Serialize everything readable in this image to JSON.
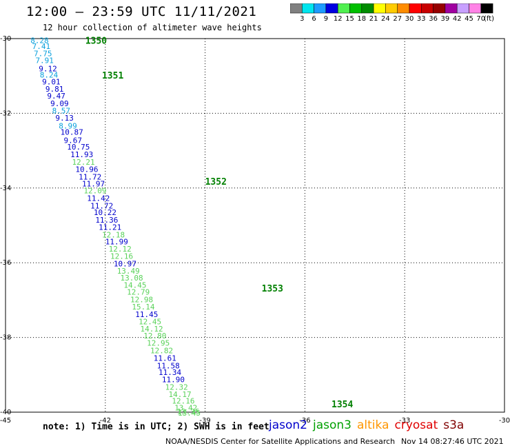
{
  "header": {
    "title": "12:00 – 23:59 UTC 11/11/2021",
    "subtitle": "12 hour collection of altimeter wave heights"
  },
  "legend": {
    "unit": "(ft)",
    "bins": [
      {
        "label": "3",
        "color": "#808080"
      },
      {
        "label": "6",
        "color": "#00e5ee"
      },
      {
        "label": "9",
        "color": "#1e9bff"
      },
      {
        "label": "12",
        "color": "#0000e0"
      },
      {
        "label": "15",
        "color": "#50f050"
      },
      {
        "label": "18",
        "color": "#00c000"
      },
      {
        "label": "21",
        "color": "#008c00"
      },
      {
        "label": "24",
        "color": "#ffff00"
      },
      {
        "label": "27",
        "color": "#ffcc00"
      },
      {
        "label": "30",
        "color": "#ff8c00"
      },
      {
        "label": "33",
        "color": "#ff0000"
      },
      {
        "label": "36",
        "color": "#c80000"
      },
      {
        "label": "39",
        "color": "#960000"
      },
      {
        "label": "42",
        "color": "#a000a0"
      },
      {
        "label": "45",
        "color": "#c8a0ff"
      },
      {
        "label": "70",
        "color": "#ff82e6"
      },
      {
        "label": "",
        "color": "#000000"
      }
    ]
  },
  "map": {
    "x_range": [
      -45,
      -30
    ],
    "y_range": [
      -40,
      -30
    ],
    "x_ticks": [
      {
        "label": "-45",
        "value": -45
      },
      {
        "label": "-42",
        "value": -42
      },
      {
        "label": "-39",
        "value": -39
      },
      {
        "label": "-36",
        "value": -36
      },
      {
        "label": "-33",
        "value": -33
      },
      {
        "label": "-30",
        "value": -30
      }
    ],
    "y_ticks": [
      {
        "label": "-30",
        "value": -30
      },
      {
        "label": "-32",
        "value": -32
      },
      {
        "label": "-34",
        "value": -34
      },
      {
        "label": "-36",
        "value": -36
      },
      {
        "label": "-38",
        "value": -38
      },
      {
        "label": "-40",
        "value": -40
      }
    ],
    "passes": [
      {
        "label": "1350",
        "lon": -42.6,
        "lat": -30.05,
        "color": "#008000"
      },
      {
        "label": "1351",
        "lon": -42.1,
        "lat": -30.98,
        "color": "#008000"
      },
      {
        "label": "1352",
        "lon": -39.0,
        "lat": -33.82,
        "color": "#008000"
      },
      {
        "label": "1353",
        "lon": -37.3,
        "lat": -36.68,
        "color": "#008000"
      },
      {
        "label": "1354",
        "lon": -35.2,
        "lat": -39.78,
        "color": "#008000"
      }
    ],
    "colors": {
      "cyan": "#0aa0dc",
      "blue": "#0000cc",
      "green": "#5ad25a"
    },
    "observations": [
      {
        "text": "8.28",
        "lon": -44.25,
        "lat": -30.05,
        "c": "cyan"
      },
      {
        "text": "7.41",
        "lon": -44.2,
        "lat": -30.2,
        "c": "cyan"
      },
      {
        "text": "7.75",
        "lon": -44.15,
        "lat": -30.4,
        "c": "cyan"
      },
      {
        "text": "7.91",
        "lon": -44.1,
        "lat": -30.58,
        "c": "cyan"
      },
      {
        "text": "9.12",
        "lon": -44.0,
        "lat": -30.8,
        "c": "blue"
      },
      {
        "text": "8.24",
        "lon": -43.97,
        "lat": -30.97,
        "c": "cyan"
      },
      {
        "text": "9.01",
        "lon": -43.9,
        "lat": -31.15,
        "c": "blue"
      },
      {
        "text": "9.81",
        "lon": -43.8,
        "lat": -31.35,
        "c": "blue"
      },
      {
        "text": "9.47",
        "lon": -43.75,
        "lat": -31.53,
        "c": "blue"
      },
      {
        "text": "9.09",
        "lon": -43.65,
        "lat": -31.73,
        "c": "blue"
      },
      {
        "text": "8.57",
        "lon": -43.6,
        "lat": -31.93,
        "c": "cyan"
      },
      {
        "text": "9.13",
        "lon": -43.5,
        "lat": -32.12,
        "c": "blue"
      },
      {
        "text": "8.99",
        "lon": -43.4,
        "lat": -32.33,
        "c": "cyan"
      },
      {
        "text": "10.87",
        "lon": -43.35,
        "lat": -32.5,
        "c": "blue"
      },
      {
        "text": "9.67",
        "lon": -43.25,
        "lat": -32.72,
        "c": "blue"
      },
      {
        "text": "10.75",
        "lon": -43.15,
        "lat": -32.9,
        "c": "blue"
      },
      {
        "text": "11.93",
        "lon": -43.05,
        "lat": -33.1,
        "c": "blue"
      },
      {
        "text": "12.21",
        "lon": -43.0,
        "lat": -33.3,
        "c": "green"
      },
      {
        "text": "10.96",
        "lon": -42.9,
        "lat": -33.5,
        "c": "blue"
      },
      {
        "text": "11.72",
        "lon": -42.8,
        "lat": -33.7,
        "c": "blue"
      },
      {
        "text": "11.97",
        "lon": -42.7,
        "lat": -33.88,
        "c": "blue"
      },
      {
        "text": "12.09",
        "lon": -42.65,
        "lat": -34.07,
        "c": "green"
      },
      {
        "text": "11.42",
        "lon": -42.55,
        "lat": -34.27,
        "c": "blue"
      },
      {
        "text": "11.72",
        "lon": -42.45,
        "lat": -34.47,
        "c": "blue"
      },
      {
        "text": "10.22",
        "lon": -42.35,
        "lat": -34.65,
        "c": "blue"
      },
      {
        "text": "11.36",
        "lon": -42.3,
        "lat": -34.85,
        "c": "blue"
      },
      {
        "text": "11.21",
        "lon": -42.2,
        "lat": -35.05,
        "c": "blue"
      },
      {
        "text": "12.18",
        "lon": -42.1,
        "lat": -35.25,
        "c": "green"
      },
      {
        "text": "11.99",
        "lon": -42.0,
        "lat": -35.43,
        "c": "blue"
      },
      {
        "text": "12.12",
        "lon": -41.9,
        "lat": -35.63,
        "c": "green"
      },
      {
        "text": "12.16",
        "lon": -41.85,
        "lat": -35.82,
        "c": "green"
      },
      {
        "text": "10.97",
        "lon": -41.75,
        "lat": -36.02,
        "c": "blue"
      },
      {
        "text": "13.49",
        "lon": -41.65,
        "lat": -36.22,
        "c": "green"
      },
      {
        "text": "13.08",
        "lon": -41.55,
        "lat": -36.4,
        "c": "green"
      },
      {
        "text": "14.45",
        "lon": -41.45,
        "lat": -36.6,
        "c": "green"
      },
      {
        "text": "12.79",
        "lon": -41.35,
        "lat": -36.78,
        "c": "green"
      },
      {
        "text": "12.98",
        "lon": -41.25,
        "lat": -36.98,
        "c": "green"
      },
      {
        "text": "15.14",
        "lon": -41.2,
        "lat": -37.18,
        "c": "green"
      },
      {
        "text": "11.45",
        "lon": -41.1,
        "lat": -37.38,
        "c": "blue"
      },
      {
        "text": "12.45",
        "lon": -41.0,
        "lat": -37.57,
        "c": "green"
      },
      {
        "text": "14.12",
        "lon": -40.95,
        "lat": -37.77,
        "c": "green"
      },
      {
        "text": "12.80",
        "lon": -40.85,
        "lat": -37.95,
        "c": "green"
      },
      {
        "text": "12.95",
        "lon": -40.75,
        "lat": -38.15,
        "c": "green"
      },
      {
        "text": "12.82",
        "lon": -40.65,
        "lat": -38.35,
        "c": "green"
      },
      {
        "text": "11.61",
        "lon": -40.55,
        "lat": -38.55,
        "c": "blue"
      },
      {
        "text": "11.58",
        "lon": -40.45,
        "lat": -38.75,
        "c": "blue"
      },
      {
        "text": "11.34",
        "lon": -40.4,
        "lat": -38.93,
        "c": "blue"
      },
      {
        "text": "11.90",
        "lon": -40.3,
        "lat": -39.12,
        "c": "blue"
      },
      {
        "text": "12.32",
        "lon": -40.2,
        "lat": -39.33,
        "c": "green"
      },
      {
        "text": "14.17",
        "lon": -40.1,
        "lat": -39.52,
        "c": "green"
      },
      {
        "text": "12.16",
        "lon": -40.0,
        "lat": -39.7,
        "c": "green"
      },
      {
        "text": "13.42",
        "lon": -39.92,
        "lat": -39.88,
        "c": "green"
      },
      {
        "text": "13.35",
        "lon": -39.85,
        "lat": -39.98,
        "c": "green"
      },
      {
        "text": "13.45",
        "lon": -39.82,
        "lat": -40.02,
        "c": "green"
      }
    ]
  },
  "footer": {
    "note": "note: 1) Time is in UTC; 2) SWH is in feet",
    "missions": [
      {
        "name": "jason2",
        "color": "#0000cc"
      },
      {
        "name": "jason3",
        "color": "#00a000"
      },
      {
        "name": "altika",
        "color": "#ff9600"
      },
      {
        "name": "cryosat",
        "color": "#e00000"
      },
      {
        "name": "s3a",
        "color": "#800000"
      }
    ],
    "credit": "NOAA/NESDIS Center for Satellite Applications and Research",
    "date": "Nov 14 08:27:46 UTC 2021"
  }
}
